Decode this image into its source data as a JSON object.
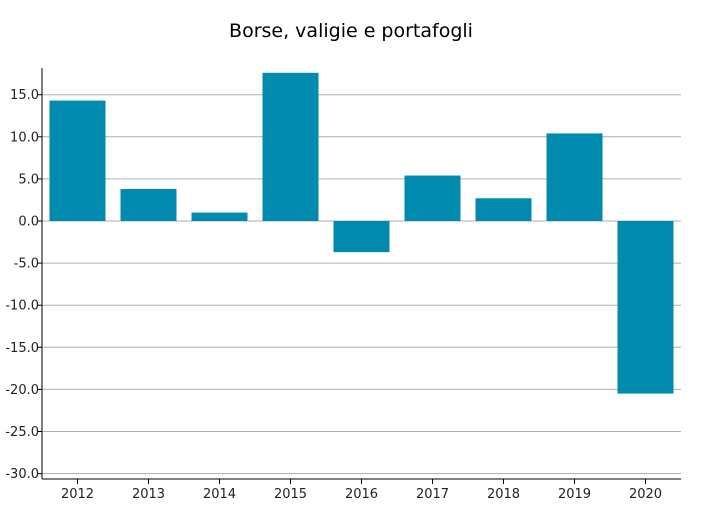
{
  "chart_data": {
    "type": "bar",
    "title": "Borse, valigie e portafogli",
    "xlabel": "",
    "ylabel": "",
    "categories": [
      "2012",
      "2013",
      "2014",
      "2015",
      "2016",
      "2017",
      "2018",
      "2019",
      "2020"
    ],
    "values": [
      14.3,
      3.8,
      1.0,
      17.6,
      -3.7,
      5.4,
      2.7,
      10.4,
      -20.5
    ],
    "ylim": [
      -30.0,
      18.0
    ],
    "yticks": [
      -30.0,
      -25.0,
      -20.0,
      -15.0,
      -10.0,
      -5.0,
      0.0,
      5.0,
      10.0,
      15.0
    ],
    "ytick_labels": [
      "-30.0",
      "-25.0",
      "-20.0",
      "-15.0",
      "-10.0",
      "-5.0",
      "0.0",
      "5.0",
      "10.0",
      "15.0"
    ],
    "grid": true,
    "legend": "none",
    "bar_color": "#008aad",
    "grid_color": "#b0b0b0"
  }
}
